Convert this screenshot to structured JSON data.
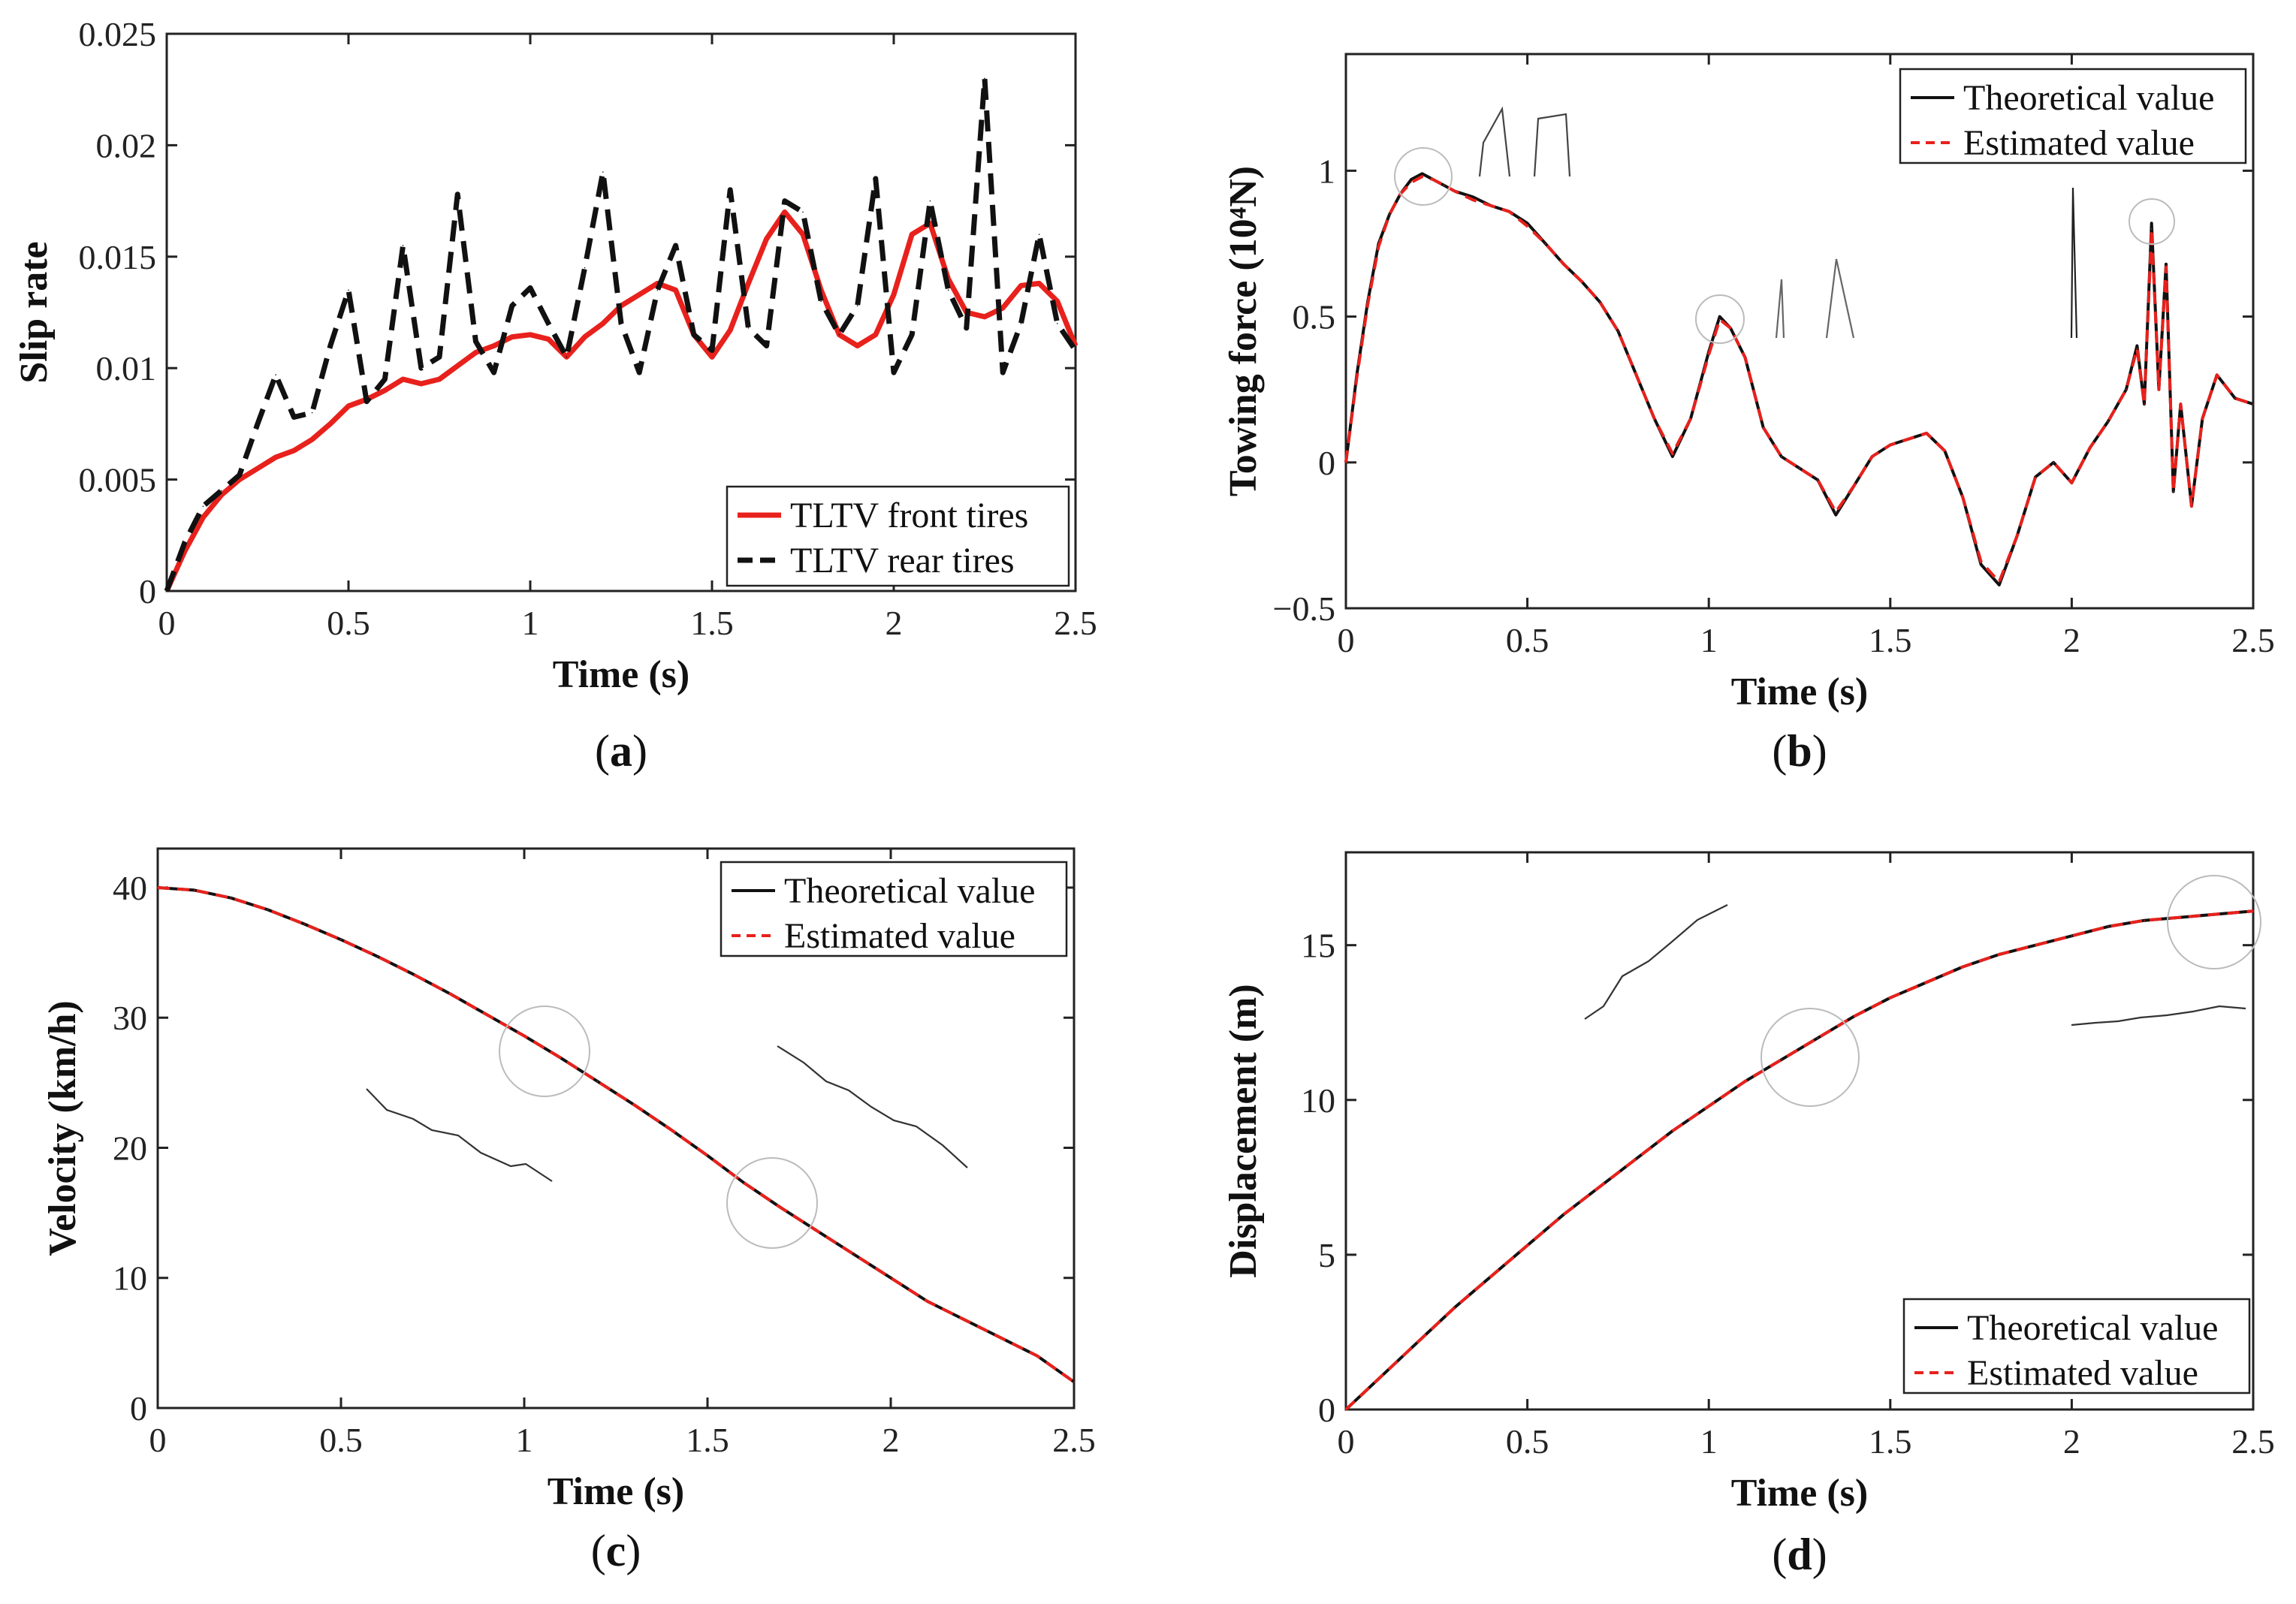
{
  "chart_data": [
    {
      "id": "a",
      "type": "line",
      "caption": "(a)",
      "caption_letter": "a",
      "xlabel": "Time  (s)",
      "ylabel": "Slip rate",
      "xlim": [
        0,
        2.5
      ],
      "ylim": [
        0,
        0.025
      ],
      "xticks": [
        0,
        0.5,
        1,
        1.5,
        2,
        2.5
      ],
      "xtick_labels": [
        "0",
        "0.5",
        "1",
        "1.5",
        "2",
        "2.5"
      ],
      "yticks": [
        0,
        0.005,
        0.01,
        0.015,
        0.02,
        0.025
      ],
      "ytick_labels": [
        "0",
        "0.005",
        "0.01",
        "0.015",
        "0.02",
        "0.025"
      ],
      "series": [
        {
          "name": "TLTV front tires",
          "color": "#e8211c",
          "style": "solid",
          "x": [
            0,
            0.05,
            0.1,
            0.15,
            0.2,
            0.25,
            0.3,
            0.35,
            0.4,
            0.45,
            0.5,
            0.55,
            0.6,
            0.65,
            0.7,
            0.75,
            0.8,
            0.85,
            0.9,
            0.95,
            1.0,
            1.05,
            1.1,
            1.15,
            1.2,
            1.25,
            1.3,
            1.35,
            1.4,
            1.45,
            1.5,
            1.55,
            1.6,
            1.65,
            1.7,
            1.75,
            1.8,
            1.85,
            1.9,
            1.95,
            2.0,
            2.05,
            2.1,
            2.15,
            2.2,
            2.25,
            2.3,
            2.35,
            2.4,
            2.45,
            2.5
          ],
          "values": [
            0,
            0.0018,
            0.0033,
            0.0043,
            0.005,
            0.0055,
            0.006,
            0.0063,
            0.0068,
            0.0075,
            0.0083,
            0.0086,
            0.009,
            0.0095,
            0.0093,
            0.0095,
            0.0101,
            0.0107,
            0.011,
            0.0114,
            0.0115,
            0.0113,
            0.0105,
            0.0114,
            0.012,
            0.0128,
            0.0133,
            0.0138,
            0.0135,
            0.0115,
            0.0105,
            0.0117,
            0.0138,
            0.0158,
            0.017,
            0.016,
            0.0135,
            0.0115,
            0.011,
            0.0115,
            0.0133,
            0.016,
            0.0165,
            0.014,
            0.0125,
            0.0123,
            0.0127,
            0.0137,
            0.0138,
            0.013,
            0.011
          ]
        },
        {
          "name": "TLTV rear tires",
          "color": "#111111",
          "style": "dashed",
          "x": [
            0,
            0.05,
            0.1,
            0.15,
            0.2,
            0.25,
            0.3,
            0.35,
            0.4,
            0.45,
            0.5,
            0.55,
            0.6,
            0.65,
            0.7,
            0.75,
            0.8,
            0.85,
            0.9,
            0.95,
            1.0,
            1.05,
            1.1,
            1.15,
            1.2,
            1.25,
            1.3,
            1.35,
            1.4,
            1.45,
            1.5,
            1.55,
            1.6,
            1.65,
            1.7,
            1.75,
            1.8,
            1.85,
            1.9,
            1.95,
            2.0,
            2.05,
            2.1,
            2.15,
            2.2,
            2.25,
            2.3,
            2.35,
            2.4,
            2.45,
            2.5
          ],
          "values": [
            0,
            0.0022,
            0.0038,
            0.0045,
            0.0052,
            0.0075,
            0.0097,
            0.0078,
            0.008,
            0.011,
            0.0135,
            0.0085,
            0.0095,
            0.0155,
            0.01,
            0.0105,
            0.0178,
            0.0112,
            0.0098,
            0.0128,
            0.0136,
            0.012,
            0.0105,
            0.0145,
            0.0188,
            0.012,
            0.0098,
            0.0135,
            0.0155,
            0.0115,
            0.0108,
            0.018,
            0.0118,
            0.011,
            0.0175,
            0.017,
            0.013,
            0.0115,
            0.0128,
            0.0185,
            0.0098,
            0.0115,
            0.0175,
            0.0135,
            0.0118,
            0.023,
            0.0098,
            0.012,
            0.016,
            0.012,
            0.0108
          ]
        }
      ],
      "legend": "bottom-right"
    },
    {
      "id": "b",
      "type": "line",
      "caption": "(b)",
      "caption_letter": "b",
      "xlabel": "Time  (s)",
      "ylabel": "Towing force  (10⁴N)",
      "xlim": [
        0,
        2.5
      ],
      "ylim": [
        -0.5,
        1.4
      ],
      "xticks": [
        0,
        0.5,
        1,
        1.5,
        2,
        2.5
      ],
      "xtick_labels": [
        "0",
        "0.5",
        "1",
        "1.5",
        "2",
        "2.5"
      ],
      "yticks": [
        -0.5,
        0,
        0.5,
        1
      ],
      "ytick_labels": [
        "−0.5",
        "0",
        "0.5",
        "1"
      ],
      "series": [
        {
          "name": "Theoretical value",
          "color": "#111111",
          "style": "solid",
          "x": [
            0,
            0.03,
            0.06,
            0.09,
            0.12,
            0.15,
            0.18,
            0.21,
            0.24,
            0.27,
            0.3,
            0.35,
            0.4,
            0.45,
            0.5,
            0.55,
            0.6,
            0.65,
            0.7,
            0.75,
            0.8,
            0.85,
            0.9,
            0.95,
            1.0,
            1.03,
            1.06,
            1.1,
            1.15,
            1.2,
            1.25,
            1.3,
            1.35,
            1.4,
            1.45,
            1.5,
            1.55,
            1.6,
            1.65,
            1.7,
            1.75,
            1.8,
            1.85,
            1.9,
            1.95,
            2.0,
            2.05,
            2.1,
            2.15,
            2.18,
            2.2,
            2.22,
            2.24,
            2.26,
            2.28,
            2.3,
            2.33,
            2.36,
            2.4,
            2.45,
            2.5
          ],
          "values": [
            0,
            0.3,
            0.55,
            0.75,
            0.85,
            0.92,
            0.97,
            0.99,
            0.97,
            0.95,
            0.93,
            0.91,
            0.88,
            0.86,
            0.82,
            0.75,
            0.68,
            0.62,
            0.55,
            0.45,
            0.3,
            0.15,
            0.02,
            0.15,
            0.38,
            0.5,
            0.46,
            0.36,
            0.12,
            0.02,
            -0.02,
            -0.06,
            -0.18,
            -0.08,
            0.02,
            0.06,
            0.08,
            0.1,
            0.04,
            -0.12,
            -0.35,
            -0.42,
            -0.25,
            -0.05,
            0.0,
            -0.07,
            0.05,
            0.14,
            0.25,
            0.4,
            0.2,
            0.82,
            0.25,
            0.68,
            -0.1,
            0.2,
            -0.15,
            0.15,
            0.3,
            0.22,
            0.2
          ]
        },
        {
          "name": "Estimated value",
          "color": "#e8211c",
          "style": "dashed",
          "x": [
            0,
            0.03,
            0.06,
            0.09,
            0.12,
            0.15,
            0.18,
            0.21,
            0.24,
            0.27,
            0.3,
            0.35,
            0.4,
            0.45,
            0.5,
            0.55,
            0.6,
            0.65,
            0.7,
            0.75,
            0.8,
            0.85,
            0.9,
            0.95,
            1.0,
            1.03,
            1.06,
            1.1,
            1.15,
            1.2,
            1.25,
            1.3,
            1.35,
            1.4,
            1.45,
            1.5,
            1.55,
            1.6,
            1.65,
            1.7,
            1.75,
            1.8,
            1.85,
            1.9,
            1.95,
            2.0,
            2.05,
            2.1,
            2.15,
            2.18,
            2.2,
            2.22,
            2.24,
            2.26,
            2.28,
            2.3,
            2.33,
            2.36,
            2.4,
            2.45,
            2.5
          ],
          "values": [
            0,
            0.29,
            0.54,
            0.74,
            0.85,
            0.92,
            0.96,
            0.98,
            0.97,
            0.95,
            0.93,
            0.9,
            0.88,
            0.86,
            0.81,
            0.75,
            0.68,
            0.62,
            0.55,
            0.45,
            0.3,
            0.15,
            0.03,
            0.15,
            0.37,
            0.49,
            0.46,
            0.36,
            0.12,
            0.02,
            -0.02,
            -0.06,
            -0.17,
            -0.08,
            0.02,
            0.06,
            0.08,
            0.1,
            0.04,
            -0.12,
            -0.34,
            -0.41,
            -0.25,
            -0.05,
            0.0,
            -0.07,
            0.05,
            0.14,
            0.25,
            0.39,
            0.2,
            0.8,
            0.25,
            0.67,
            -0.1,
            0.2,
            -0.15,
            0.15,
            0.3,
            0.22,
            0.2
          ]
        }
      ],
      "legend": "top-right"
    },
    {
      "id": "c",
      "type": "line",
      "caption": "(c)",
      "caption_letter": "c",
      "xlabel": "Time  (s)",
      "ylabel": "Velocity  (km/h)",
      "xlim": [
        0,
        2.5
      ],
      "ylim": [
        0,
        43
      ],
      "xticks": [
        0,
        0.5,
        1,
        1.5,
        2,
        2.5
      ],
      "xtick_labels": [
        "0",
        "0.5",
        "1",
        "1.5",
        "2",
        "2.5"
      ],
      "yticks": [
        0,
        10,
        20,
        30,
        40
      ],
      "ytick_labels": [
        "0",
        "10",
        "20",
        "30",
        "40"
      ],
      "series": [
        {
          "name": "Theoretical value",
          "color": "#111111",
          "style": "solid",
          "x": [
            0,
            0.1,
            0.2,
            0.3,
            0.4,
            0.5,
            0.6,
            0.7,
            0.8,
            0.9,
            1.0,
            1.1,
            1.2,
            1.3,
            1.4,
            1.5,
            1.6,
            1.7,
            1.8,
            1.9,
            2.0,
            2.1,
            2.2,
            2.3,
            2.4,
            2.5
          ],
          "values": [
            40,
            39.8,
            39.2,
            38.3,
            37.2,
            36.0,
            34.7,
            33.3,
            31.8,
            30.2,
            28.6,
            26.9,
            25.1,
            23.3,
            21.4,
            19.4,
            17.3,
            15.4,
            13.6,
            11.8,
            10.0,
            8.2,
            6.8,
            5.4,
            4.0,
            2.0
          ]
        },
        {
          "name": "Estimated value",
          "color": "#e8211c",
          "style": "dashed",
          "x": [
            0,
            0.1,
            0.2,
            0.3,
            0.4,
            0.5,
            0.6,
            0.7,
            0.8,
            0.9,
            1.0,
            1.1,
            1.2,
            1.3,
            1.4,
            1.5,
            1.6,
            1.7,
            1.8,
            1.9,
            2.0,
            2.1,
            2.2,
            2.3,
            2.4,
            2.5
          ],
          "values": [
            40,
            39.8,
            39.2,
            38.3,
            37.2,
            36.0,
            34.7,
            33.3,
            31.8,
            30.2,
            28.6,
            26.9,
            25.1,
            23.3,
            21.4,
            19.4,
            17.3,
            15.4,
            13.6,
            11.8,
            10.0,
            8.2,
            6.8,
            5.4,
            4.0,
            2.0
          ]
        }
      ],
      "legend": "top-right"
    },
    {
      "id": "d",
      "type": "line",
      "caption": "(d)",
      "caption_letter": "d",
      "xlabel": "Time  (s)",
      "ylabel": "Displacement  (m)",
      "xlim": [
        0,
        2.5
      ],
      "ylim": [
        0,
        18
      ],
      "xticks": [
        0,
        0.5,
        1,
        1.5,
        2,
        2.5
      ],
      "xtick_labels": [
        "0",
        "0.5",
        "1",
        "1.5",
        "2",
        "2.5"
      ],
      "yticks": [
        0,
        5,
        10,
        15
      ],
      "ytick_labels": [
        "0",
        "5",
        "10",
        "15"
      ],
      "series": [
        {
          "name": "Theoretical value",
          "color": "#111111",
          "style": "solid",
          "x": [
            0,
            0.1,
            0.2,
            0.3,
            0.4,
            0.5,
            0.6,
            0.7,
            0.8,
            0.9,
            1.0,
            1.1,
            1.2,
            1.3,
            1.4,
            1.5,
            1.6,
            1.7,
            1.8,
            1.9,
            2.0,
            2.1,
            2.2,
            2.3,
            2.4,
            2.5
          ],
          "values": [
            0,
            1.1,
            2.2,
            3.3,
            4.3,
            5.3,
            6.3,
            7.2,
            8.1,
            9.0,
            9.8,
            10.6,
            11.3,
            12.0,
            12.7,
            13.3,
            13.8,
            14.3,
            14.7,
            15.0,
            15.3,
            15.6,
            15.8,
            15.9,
            16.0,
            16.1
          ]
        },
        {
          "name": "Estimated value",
          "color": "#e8211c",
          "style": "dashed",
          "x": [
            0,
            0.1,
            0.2,
            0.3,
            0.4,
            0.5,
            0.6,
            0.7,
            0.8,
            0.9,
            1.0,
            1.1,
            1.2,
            1.3,
            1.4,
            1.5,
            1.6,
            1.7,
            1.8,
            1.9,
            2.0,
            2.1,
            2.2,
            2.3,
            2.4,
            2.5
          ],
          "values": [
            0,
            1.1,
            2.2,
            3.3,
            4.3,
            5.3,
            6.3,
            7.2,
            8.1,
            9.0,
            9.8,
            10.6,
            11.3,
            12.0,
            12.7,
            13.3,
            13.8,
            14.3,
            14.7,
            15.0,
            15.3,
            15.6,
            15.8,
            15.9,
            16.0,
            16.1
          ]
        }
      ],
      "legend": "bottom-right"
    }
  ]
}
